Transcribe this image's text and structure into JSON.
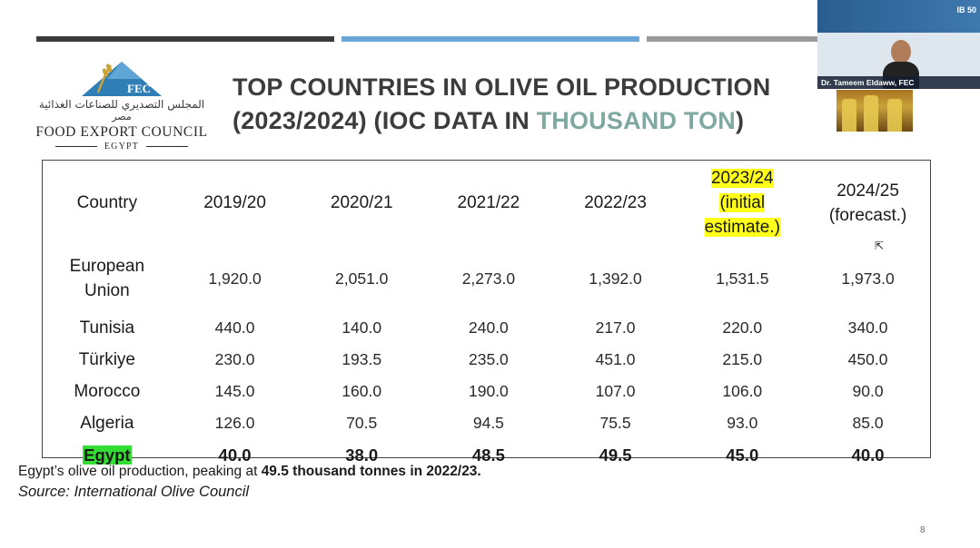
{
  "slide": {
    "logo": {
      "mark_text": "FEC",
      "arabic_line1": "المجلس التصديري للصناعات الغذائية",
      "arabic_line2": "مصر",
      "english_name": "FOOD EXPORT COUNCIL",
      "country": "EGYPT"
    },
    "title": {
      "line1": "TOP COUNTRIES IN OLIVE OIL PRODUCTION",
      "line2_prefix": "(2023/2024) (IOC DATA IN ",
      "line2_accent": "THOUSAND TON",
      "line2_suffix": ")",
      "accent_color": "#7fa9a0"
    },
    "video": {
      "speaker_caption": "Dr. Tameem Eldaww, FEC",
      "badge": "IB 50"
    },
    "table": {
      "headers": [
        "Country",
        "2019/20",
        "2020/21",
        "2021/22",
        "2022/23",
        "2023/24 (initial estimate.)",
        "2024/25 (forecast.)"
      ],
      "header_highlight": {
        "line1": "2023/24",
        "line2": "(initial",
        "line3": "estimate.)",
        "color": "#ffff1a"
      },
      "header_last": {
        "line1": "2024/25",
        "line2": "(forecast.)"
      },
      "rows": [
        {
          "country_line1": "European",
          "country_line2": "Union",
          "values": [
            "1,920.0",
            "2,051.0",
            "2,273.0",
            "1,392.0",
            "1,531.5",
            "1,973.0"
          ]
        },
        {
          "country": "Tunisia",
          "values": [
            "440.0",
            "140.0",
            "240.0",
            "217.0",
            "220.0",
            "340.0"
          ]
        },
        {
          "country": "Türkiye",
          "values": [
            "230.0",
            "193.5",
            "235.0",
            "451.0",
            "215.0",
            "450.0"
          ]
        },
        {
          "country": "Morocco",
          "values": [
            "145.0",
            "160.0",
            "190.0",
            "107.0",
            "106.0",
            "90.0"
          ]
        },
        {
          "country": "Algeria",
          "values": [
            "126.0",
            "70.5",
            "94.5",
            "75.5",
            "93.0",
            "85.0"
          ]
        },
        {
          "country": "Egypt",
          "values": [
            "40.0",
            "38.0",
            "48.5",
            "49.5",
            "45.0",
            "40.0"
          ],
          "highlight_color": "#33dd33"
        }
      ]
    },
    "note": {
      "prefix": "Egypt’s olive oil production, peaking at ",
      "bold": "49.5 thousand tonnes in 2022/23.",
      "source": "Source: International Olive Council"
    },
    "page_number": "8"
  }
}
